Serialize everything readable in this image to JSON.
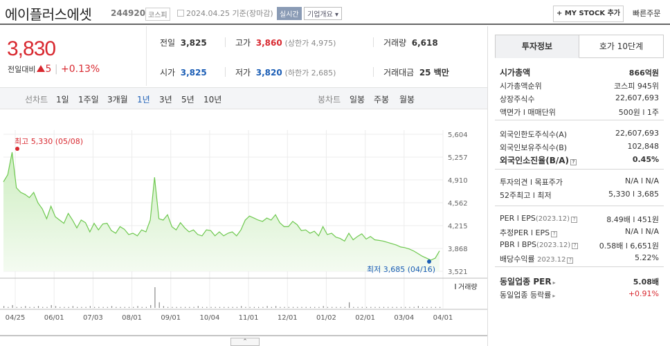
{
  "header": {
    "name": "에이플러스에셋",
    "code": "244920",
    "market": "코스피",
    "date": "2024.04.25",
    "date_basis": "기준(장마감)",
    "realtime": "실시간",
    "company_info": "기업개요",
    "my_stock": "+ MY STOCK 추가",
    "quick_order": "빠른주문"
  },
  "price": {
    "current": "3,830",
    "change_label": "전일대비",
    "change": "5",
    "change_pct": "+0.13%"
  },
  "quote": {
    "prev_label": "전일",
    "prev": "3,825",
    "high_label": "고가",
    "high": "3,860",
    "upper_limit": "(상한가 4,975)",
    "volume_label": "거래량",
    "volume": "6,618",
    "open_label": "시가",
    "open": "3,825",
    "low_label": "저가",
    "low": "3,820",
    "lower_limit": "(하한가 2,685)",
    "amount_label": "거래대금",
    "amount": "25 백만"
  },
  "period_bar": {
    "line_chart": "선차트",
    "periods": [
      "1일",
      "1주일",
      "3개월",
      "1년",
      "3년",
      "5년",
      "10년"
    ],
    "selected": "1년",
    "candle_chart": "봉차트",
    "candle_periods": [
      "일봉",
      "주봉",
      "월봉"
    ]
  },
  "chart_data": {
    "type": "area",
    "y_ticks": [
      "5,604",
      "5,257",
      "4,910",
      "4,562",
      "4,215",
      "3,868",
      "3,521"
    ],
    "ylim": [
      3521,
      5604
    ],
    "x_ticks": [
      "04/25",
      "06/01",
      "07/03",
      "08/01",
      "09/01",
      "10/04",
      "11/01",
      "12/01",
      "01/02",
      "02/01",
      "03/04",
      "04/01"
    ],
    "high_note": "최고 5,330 (05/08)",
    "low_note": "최저 3,685 (04/16)",
    "volume_label": "거래량",
    "values": [
      4880,
      4990,
      5330,
      4790,
      4720,
      4690,
      4640,
      4720,
      4560,
      4470,
      4320,
      4510,
      4350,
      4300,
      4250,
      4400,
      4300,
      4180,
      4300,
      4260,
      4120,
      4250,
      4150,
      4240,
      4250,
      4140,
      4100,
      4200,
      4160,
      4080,
      4100,
      4060,
      4150,
      4120,
      4300,
      4950,
      4320,
      4300,
      4380,
      4200,
      4150,
      4260,
      4180,
      4120,
      4150,
      4080,
      4060,
      4150,
      4140,
      4060,
      4120,
      4060,
      4100,
      4120,
      4060,
      4150,
      4300,
      4360,
      4330,
      4300,
      4280,
      4330,
      4300,
      4380,
      4260,
      4200,
      4200,
      4280,
      4230,
      4140,
      4150,
      4100,
      4130,
      4060,
      4200,
      4080,
      4100,
      4040,
      4020,
      3980,
      4100,
      4000,
      4050,
      4090,
      4010,
      4050,
      4000,
      3990,
      3980,
      3960,
      3940,
      3920,
      3890,
      3880,
      3860,
      3830,
      3790,
      3750,
      3720,
      3690,
      3720,
      3830
    ],
    "volume": [
      2,
      1,
      3,
      1,
      1,
      2,
      1,
      1,
      2,
      1,
      1,
      3,
      2,
      1,
      1,
      1,
      2,
      1,
      1,
      1,
      2,
      1,
      1,
      1,
      1,
      2,
      1,
      1,
      1,
      1,
      1,
      2,
      1,
      1,
      3,
      22,
      6,
      2,
      1,
      1,
      1,
      1,
      1,
      1,
      1,
      2,
      1,
      1,
      1,
      1,
      1,
      1,
      1,
      1,
      1,
      2,
      1,
      1,
      1,
      1,
      1,
      2,
      1,
      2,
      1,
      1,
      1,
      1,
      1,
      1,
      1,
      1,
      1,
      1,
      2,
      1,
      1,
      1,
      1,
      1,
      6,
      1,
      1,
      1,
      1,
      1,
      1,
      1,
      1,
      1,
      1,
      1,
      1,
      1,
      1,
      1,
      2,
      1,
      1,
      1,
      1,
      1
    ]
  },
  "invest": {
    "tab_active": "투자정보",
    "tab_other": "호가 10단계",
    "g1": [
      {
        "l": "시가총액",
        "r": "866억원",
        "bold": true
      },
      {
        "l": "시가총액순위",
        "r": "코스피 945위"
      },
      {
        "l": "상장주식수",
        "r": "22,607,693"
      },
      {
        "l": "액면가 l 매매단위",
        "r": "500원 l 1주"
      }
    ],
    "g2": [
      {
        "l": "외국인한도주식수(A)",
        "r": "22,607,693"
      },
      {
        "l": "외국인보유주식수(B)",
        "r": "102,848"
      },
      {
        "l": "외국인소진율(B/A)",
        "r": "0.45%",
        "bold": true
      }
    ],
    "g3": [
      {
        "l": "투자의견 l 목표주가",
        "r": "N/A l N/A"
      },
      {
        "l": "52주최고 l 최저",
        "r": "5,330 l 3,685"
      }
    ],
    "g4_per": "PER l EPS",
    "g4_per_date": "(2023.12)",
    "g4_per_v": "8.49배 l 451원",
    "g4_eper": "추정PER l EPS",
    "g4_eper_v": "N/A l N/A",
    "g4_pbr": "PBR l BPS",
    "g4_pbr_date": "(2023.12)",
    "g4_pbr_v": "0.58배 l 6,651원",
    "g4_div": "배당수익률",
    "g4_div_date": "2023.12",
    "g4_div_v": "5.22%",
    "g5_per": "동일업종 PER",
    "g5_per_v": "5.08배",
    "g5_rate": "동일업종 등락률",
    "g5_rate_v": "+0.91%"
  }
}
